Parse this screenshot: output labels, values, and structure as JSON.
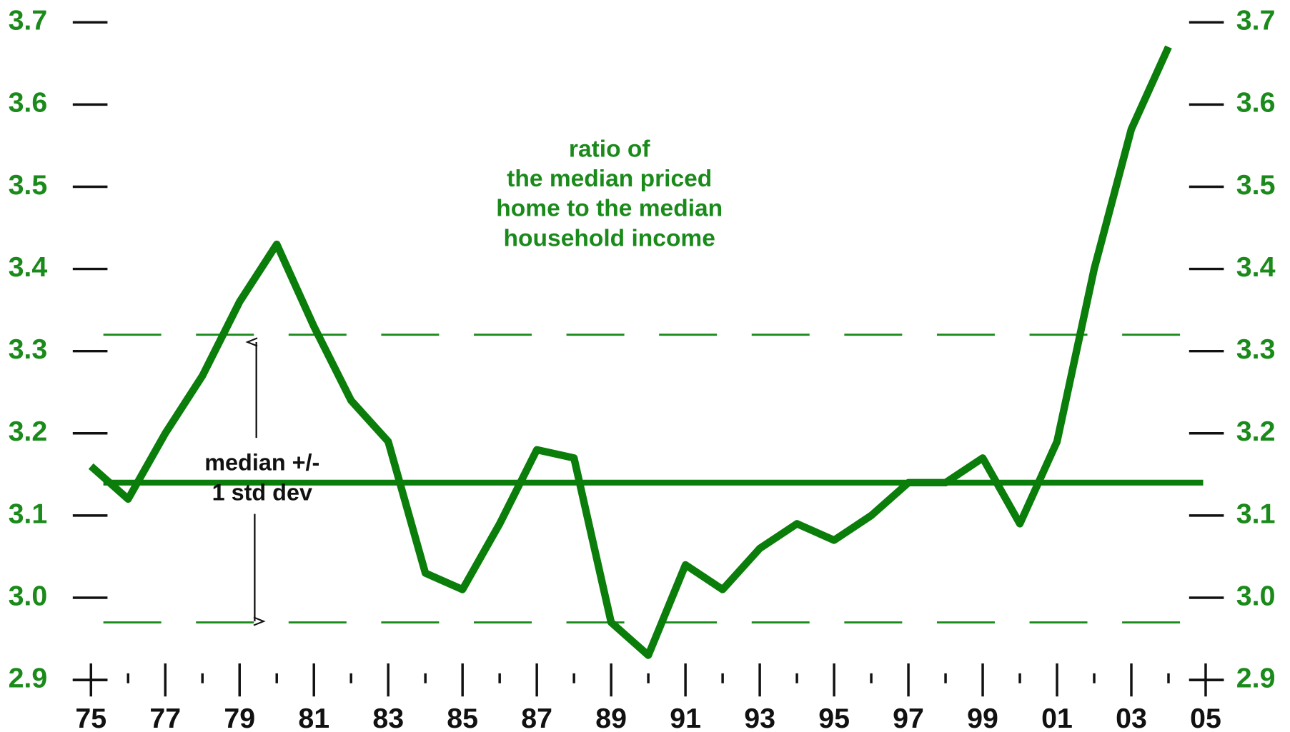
{
  "chart_data": {
    "type": "line",
    "annotation": [
      "ratio of",
      "the median priced",
      "home to the median",
      "household income"
    ],
    "band_label": [
      "median +/-",
      "1 std dev"
    ],
    "x": [
      1975,
      1976,
      1977,
      1978,
      1979,
      1980,
      1981,
      1982,
      1983,
      1984,
      1985,
      1986,
      1987,
      1988,
      1989,
      1990,
      1991,
      1992,
      1993,
      1994,
      1995,
      1996,
      1997,
      1998,
      1999,
      2000,
      2001,
      2002,
      2003,
      2004
    ],
    "series": [
      {
        "color": "#0a7d0a",
        "values": [
          3.16,
          3.12,
          3.2,
          3.27,
          3.36,
          3.43,
          3.33,
          3.24,
          3.19,
          3.03,
          3.01,
          3.09,
          3.18,
          3.17,
          2.97,
          2.93,
          3.04,
          3.01,
          3.06,
          3.09,
          3.07,
          3.1,
          3.14,
          3.14,
          3.17,
          3.09,
          3.19,
          3.4,
          3.57,
          3.67
        ]
      }
    ],
    "median": 3.14,
    "band": [
      2.97,
      3.32
    ],
    "xlim": [
      1975,
      2005
    ],
    "xticks": [
      {
        "value": 1975,
        "label": "75"
      },
      {
        "value": 1977,
        "label": "77"
      },
      {
        "value": 1979,
        "label": "79"
      },
      {
        "value": 1981,
        "label": "81"
      },
      {
        "value": 1983,
        "label": "83"
      },
      {
        "value": 1985,
        "label": "85"
      },
      {
        "value": 1987,
        "label": "87"
      },
      {
        "value": 1989,
        "label": "89"
      },
      {
        "value": 1991,
        "label": "91"
      },
      {
        "value": 1993,
        "label": "93"
      },
      {
        "value": 1995,
        "label": "95"
      },
      {
        "value": 1997,
        "label": "97"
      },
      {
        "value": 1999,
        "label": "99"
      },
      {
        "value": 2001,
        "label": "01"
      },
      {
        "value": 2003,
        "label": "03"
      },
      {
        "value": 2005,
        "label": "05"
      }
    ],
    "xminorticks": [
      1976,
      1978,
      1980,
      1982,
      1984,
      1986,
      1988,
      1990,
      1992,
      1994,
      1996,
      1998,
      2000,
      2002,
      2004
    ],
    "ylim": [
      2.9,
      3.7
    ],
    "yticks": [
      {
        "value": 2.9,
        "label": "2.9"
      },
      {
        "value": 3.0,
        "label": "3.0"
      },
      {
        "value": 3.1,
        "label": "3.1"
      },
      {
        "value": 3.2,
        "label": "3.2"
      },
      {
        "value": 3.3,
        "label": "3.3"
      },
      {
        "value": 3.4,
        "label": "3.4"
      },
      {
        "value": 3.5,
        "label": "3.5"
      },
      {
        "value": 3.6,
        "label": "3.6"
      },
      {
        "value": 3.7,
        "label": "3.7"
      }
    ]
  }
}
